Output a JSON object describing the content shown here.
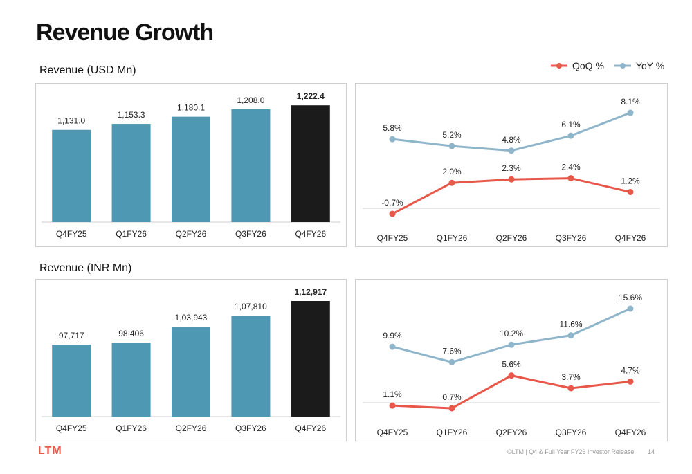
{
  "page": {
    "title": "Revenue Growth",
    "footer_logo": "LTM",
    "footer_text": "©LTM | Q4 & Full Year FY26 Investor Release",
    "page_number": "14"
  },
  "colors": {
    "bar": "#4f98b4",
    "bar_highlight": "#1b1b1b",
    "qoq": "#e8584a",
    "yoy": "#8fb5cb"
  },
  "legend": {
    "qoq_label": "QoQ %",
    "yoy_label": "YoY %"
  },
  "chart_data": [
    {
      "type": "bar",
      "title": "Revenue (USD Mn)",
      "categories": [
        "Q4FY25",
        "Q1FY26",
        "Q2FY26",
        "Q3FY26",
        "Q4FY26"
      ],
      "values": [
        1131.0,
        1153.3,
        1180.1,
        1208.0,
        1222.4
      ],
      "labels": [
        "1,131.0",
        "1,153.3",
        "1,180.1",
        "1,208.0",
        "1,222.4"
      ],
      "highlight_last": true
    },
    {
      "type": "line",
      "categories": [
        "Q4FY25",
        "Q1FY26",
        "Q2FY26",
        "Q3FY26",
        "Q4FY26"
      ],
      "series": [
        {
          "name": "YoY %",
          "values": [
            5.8,
            5.2,
            4.8,
            6.1,
            8.1
          ],
          "labels": [
            "5.8%",
            "5.2%",
            "4.8%",
            "6.1%",
            "8.1%"
          ]
        },
        {
          "name": "QoQ %",
          "values": [
            -0.7,
            2.0,
            2.3,
            2.4,
            1.2
          ],
          "labels": [
            "-0.7%",
            "2.0%",
            "2.3%",
            "2.4%",
            "1.2%"
          ]
        }
      ]
    },
    {
      "type": "bar",
      "title": "Revenue (INR Mn)",
      "categories": [
        "Q4FY25",
        "Q1FY26",
        "Q2FY26",
        "Q3FY26",
        "Q4FY26"
      ],
      "values": [
        97717,
        98406,
        103943,
        107810,
        112917
      ],
      "labels": [
        "97,717",
        "98,406",
        "1,03,943",
        "1,07,810",
        "1,12,917"
      ],
      "highlight_last": true
    },
    {
      "type": "line",
      "categories": [
        "Q4FY25",
        "Q1FY26",
        "Q2FY26",
        "Q3FY26",
        "Q4FY26"
      ],
      "series": [
        {
          "name": "YoY %",
          "values": [
            9.9,
            7.6,
            10.2,
            11.6,
            15.6
          ],
          "labels": [
            "9.9%",
            "7.6%",
            "10.2%",
            "11.6%",
            "15.6%"
          ]
        },
        {
          "name": "QoQ %",
          "values": [
            1.1,
            0.7,
            5.6,
            3.7,
            4.7
          ],
          "labels": [
            "1.1%",
            "0.7%",
            "5.6%",
            "3.7%",
            "4.7%"
          ]
        }
      ]
    }
  ]
}
